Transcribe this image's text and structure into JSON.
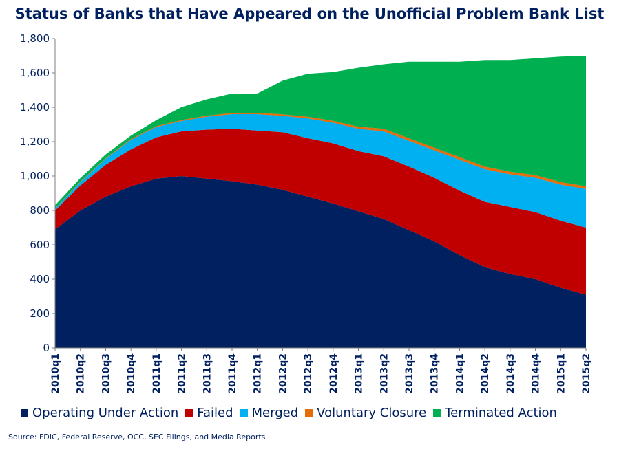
{
  "title": "Status of Banks that Have Appeared on the Unofficial Problem Bank List",
  "source": "Source: FDIC, Federal Reserve, OCC, SEC Filings, and Media Reports",
  "chart_data": {
    "type": "area",
    "stacked": true,
    "title": "Status of Banks that Have Appeared on the Unofficial Problem Bank List",
    "xlabel": "",
    "ylabel": "",
    "ylim": [
      0,
      1800
    ],
    "y_ticks": [
      "0",
      "200",
      "400",
      "600",
      "800",
      "1,000",
      "1,200",
      "1,400",
      "1,600",
      "1,800"
    ],
    "grid": false,
    "legend_position": "bottom",
    "categories": [
      "2010q1",
      "2010q2",
      "2010q3",
      "2010q4",
      "2011q1",
      "2011q2",
      "2011q3",
      "2011q4",
      "2012q1",
      "2012q2",
      "2012q3",
      "2012q4",
      "2013q1",
      "2013q2",
      "2013q3",
      "2013q4",
      "2014q1",
      "2014q2",
      "2014q3",
      "2014q4",
      "2015q1",
      "2015q2"
    ],
    "series": [
      {
        "name": "Operating Under Action",
        "color": "#002060",
        "values": [
          690,
          800,
          880,
          940,
          985,
          1000,
          985,
          970,
          950,
          920,
          880,
          840,
          795,
          750,
          685,
          620,
          540,
          470,
          430,
          400,
          350,
          310
        ]
      },
      {
        "name": "Failed",
        "color": "#C00000",
        "values": [
          110,
          145,
          185,
          215,
          240,
          260,
          285,
          305,
          315,
          335,
          340,
          350,
          350,
          365,
          370,
          370,
          375,
          380,
          390,
          390,
          390,
          390
        ]
      },
      {
        "name": "Merged",
        "color": "#00B0F0",
        "values": [
          10,
          20,
          35,
          55,
          60,
          60,
          75,
          85,
          95,
          95,
          115,
          120,
          130,
          145,
          150,
          160,
          180,
          190,
          190,
          200,
          210,
          225
        ]
      },
      {
        "name": "Voluntary Closure",
        "color": "#E46C0A",
        "values": [
          2,
          3,
          4,
          5,
          5,
          6,
          6,
          7,
          8,
          9,
          10,
          11,
          12,
          15,
          15,
          15,
          15,
          15,
          15,
          15,
          15,
          15
        ]
      },
      {
        "name": "Terminated Action",
        "color": "#00B050",
        "values": [
          18,
          20,
          21,
          20,
          35,
          75,
          95,
          113,
          112,
          196,
          250,
          284,
          343,
          375,
          445,
          500,
          555,
          620,
          650,
          680,
          730,
          760
        ]
      }
    ]
  }
}
